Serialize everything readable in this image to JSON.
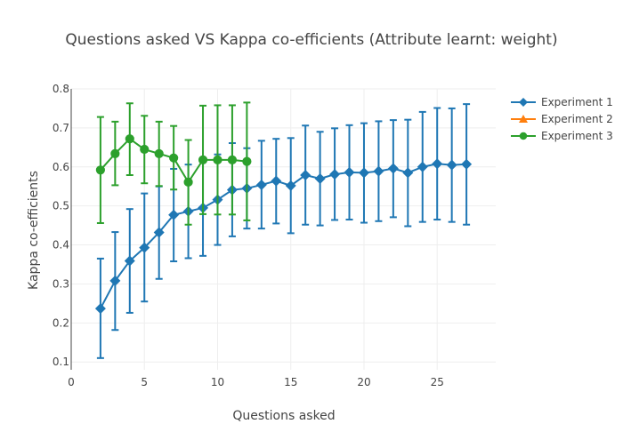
{
  "chart_data": {
    "type": "line",
    "title": "Questions asked VS Kappa co-efficients (Attribute learnt: weight)",
    "xlabel": "Questions asked",
    "ylabel": "Kappa co-efficients",
    "xlim": [
      0,
      29
    ],
    "ylim": [
      0.08,
      0.8
    ],
    "xticks": [
      0,
      5,
      10,
      15,
      20,
      25
    ],
    "yticks": [
      0.1,
      0.2,
      0.3,
      0.4,
      0.5,
      0.6,
      0.7,
      0.8
    ],
    "grid": true,
    "legend_position": "top-right",
    "series": [
      {
        "name": "Experiment 1",
        "color": "#1f77b4",
        "marker": "diamond",
        "x": [
          2,
          3,
          4,
          5,
          6,
          7,
          8,
          9,
          10,
          11,
          12,
          13,
          14,
          15,
          16,
          17,
          18,
          19,
          20,
          21,
          22,
          23,
          24,
          25,
          26,
          27
        ],
        "y": [
          0.237,
          0.308,
          0.359,
          0.393,
          0.432,
          0.477,
          0.486,
          0.495,
          0.516,
          0.541,
          0.545,
          0.554,
          0.564,
          0.552,
          0.579,
          0.57,
          0.581,
          0.586,
          0.585,
          0.589,
          0.596,
          0.585,
          0.6,
          0.608,
          0.605,
          0.607
        ],
        "err_low": [
          0.11,
          0.182,
          0.226,
          0.255,
          0.313,
          0.358,
          0.366,
          0.372,
          0.4,
          0.422,
          0.442,
          0.442,
          0.455,
          0.43,
          0.452,
          0.45,
          0.464,
          0.465,
          0.457,
          0.461,
          0.471,
          0.448,
          0.459,
          0.465,
          0.459,
          0.452
        ],
        "err_high": [
          0.365,
          0.433,
          0.492,
          0.532,
          0.55,
          0.595,
          0.606,
          0.619,
          0.632,
          0.661,
          0.648,
          0.667,
          0.672,
          0.674,
          0.706,
          0.69,
          0.699,
          0.707,
          0.712,
          0.717,
          0.72,
          0.721,
          0.741,
          0.751,
          0.75,
          0.761
        ]
      },
      {
        "name": "Experiment 2",
        "color": "#ff7f0e",
        "marker": "triangle",
        "x": [],
        "y": [],
        "err_low": [],
        "err_high": []
      },
      {
        "name": "Experiment 3",
        "color": "#2ca02c",
        "marker": "circle",
        "x": [
          2,
          3,
          4,
          5,
          6,
          7,
          8,
          9,
          10,
          11,
          12
        ],
        "y": [
          0.592,
          0.634,
          0.672,
          0.645,
          0.634,
          0.623,
          0.561,
          0.618,
          0.618,
          0.618,
          0.614
        ],
        "err_low": [
          0.456,
          0.553,
          0.579,
          0.558,
          0.551,
          0.542,
          0.452,
          0.479,
          0.478,
          0.478,
          0.463
        ],
        "err_high": [
          0.728,
          0.716,
          0.763,
          0.731,
          0.716,
          0.705,
          0.669,
          0.757,
          0.758,
          0.758,
          0.765
        ]
      }
    ]
  }
}
